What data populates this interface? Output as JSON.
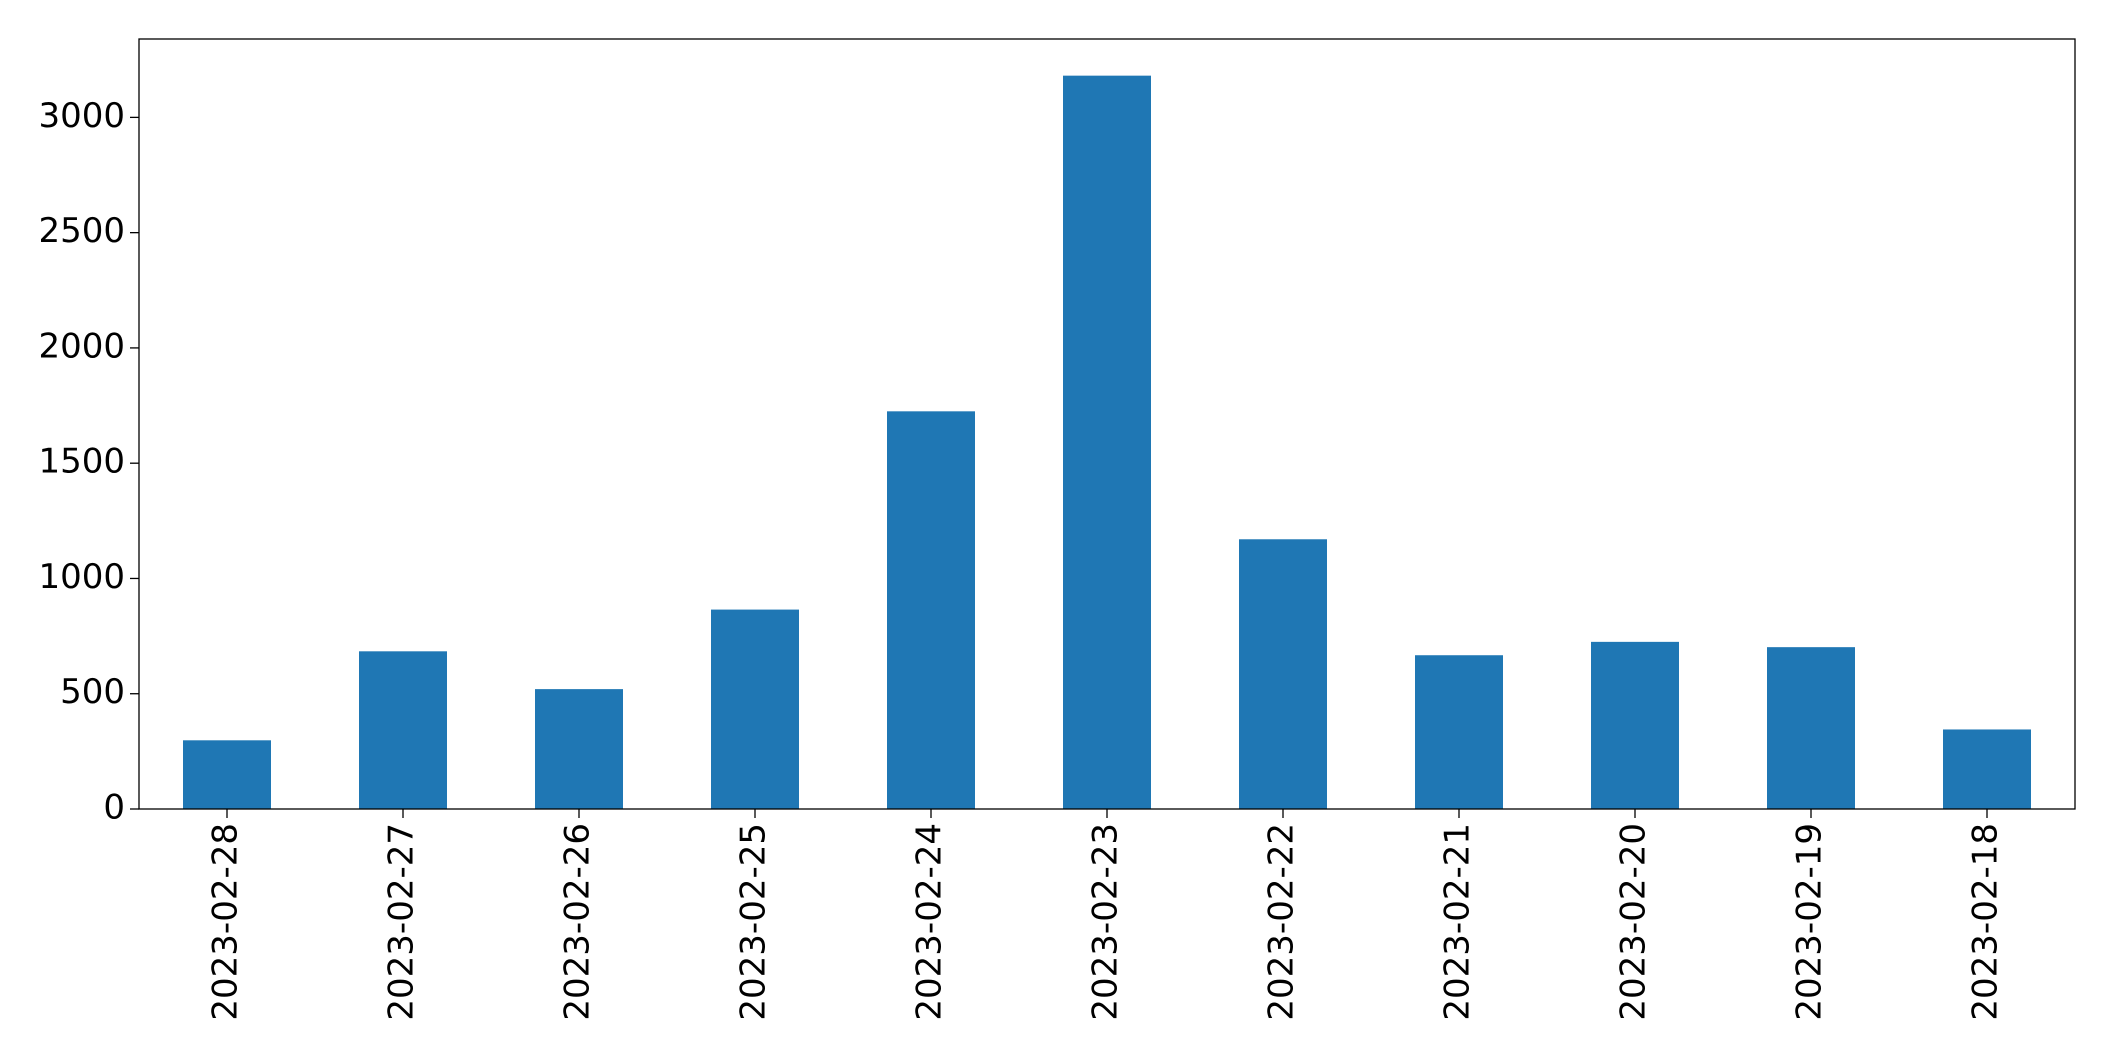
{
  "chart_data": {
    "type": "bar",
    "categories": [
      "2023-02-28",
      "2023-02-27",
      "2023-02-26",
      "2023-02-25",
      "2023-02-24",
      "2023-02-23",
      "2023-02-22",
      "2023-02-21",
      "2023-02-20",
      "2023-02-19",
      "2023-02-18"
    ],
    "values": [
      298,
      684,
      520,
      865,
      1725,
      3181,
      1170,
      667,
      725,
      702,
      345
    ],
    "color": "#1f77b4",
    "ylim": [
      0,
      3340
    ],
    "yticks": [
      0,
      500,
      1000,
      1500,
      2000,
      2500,
      3000
    ],
    "grid": false
  }
}
